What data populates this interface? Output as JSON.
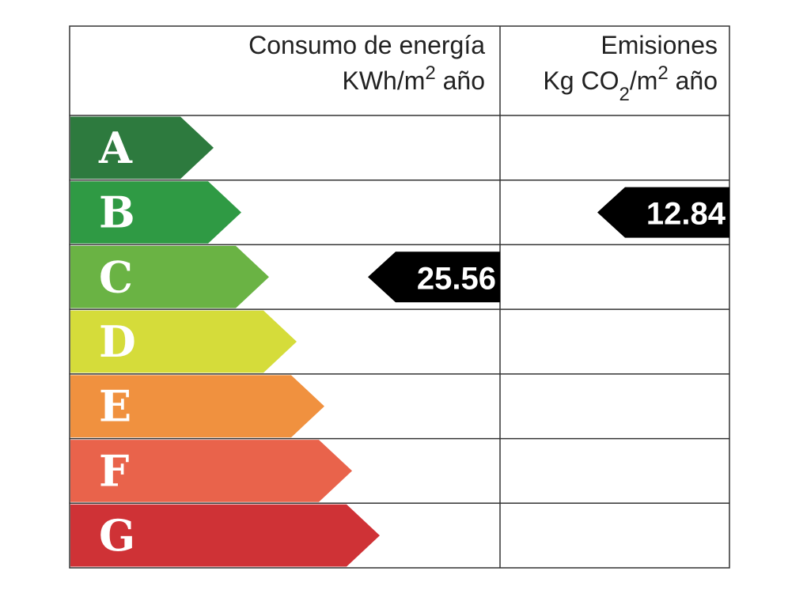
{
  "header": {
    "energy": {
      "title": "Consumo de energía",
      "unit": [
        {
          "text": "KWh/m"
        },
        {
          "text": "2",
          "shift": "super"
        },
        {
          "text": " año"
        }
      ]
    },
    "emissions": {
      "title": "Emisiones",
      "unit": [
        {
          "text": "Kg CO"
        },
        {
          "text": "2",
          "shift": "sub"
        },
        {
          "text": "/m"
        },
        {
          "text": "2",
          "shift": "super"
        },
        {
          "text": " año"
        }
      ]
    }
  },
  "rows": [
    {
      "letter": "A",
      "color": "#2d7a3e"
    },
    {
      "letter": "B",
      "color": "#2f9a44",
      "emissions": 12.84
    },
    {
      "letter": "C",
      "color": "#6ab344",
      "energy": 25.56
    },
    {
      "letter": "D",
      "color": "#d5dc3a"
    },
    {
      "letter": "E",
      "color": "#f0913f"
    },
    {
      "letter": "F",
      "color": "#e9634b"
    },
    {
      "letter": "G",
      "color": "#cf3236"
    }
  ]
}
